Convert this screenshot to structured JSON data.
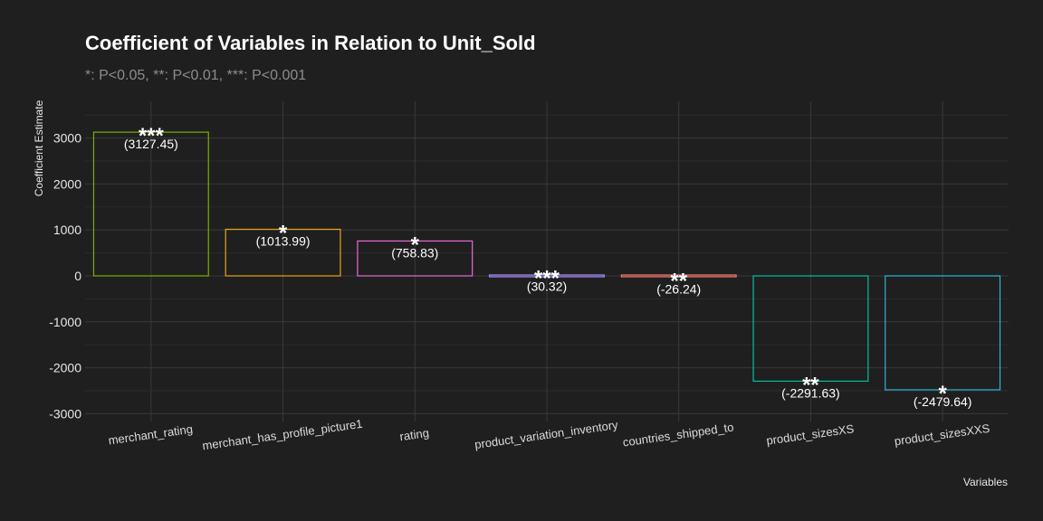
{
  "chart_data": {
    "type": "bar",
    "title": "Coefficient of Variables in Relation to Unit_Sold",
    "subtitle": "*: P<0.05, **: P<0.01, ***: P<0.001",
    "xlabel": "Variables",
    "ylabel": "Coefficient Estimate",
    "categories": [
      "merchant_rating",
      "merchant_has_profile_picture1",
      "rating",
      "product_variation_inventory",
      "countries_shipped_to",
      "product_sizesXS",
      "product_sizesXXS"
    ],
    "values": [
      3127.45,
      1013.99,
      758.83,
      30.32,
      -26.24,
      -2291.63,
      -2479.64
    ],
    "value_labels": [
      "(3127.45)",
      "(1013.99)",
      "(758.83)",
      "(30.32)",
      "(-26.24)",
      "(-2291.63)",
      "(-2479.64)"
    ],
    "significance": [
      "***",
      "*",
      "*",
      "***",
      "**",
      "**",
      "*"
    ],
    "bar_colors": [
      "#7cae00",
      "#e7a31a",
      "#e86bd6",
      "#a58aff",
      "#f8766d",
      "#00bfa0",
      "#27b8d8"
    ],
    "ylim": [
      -3300,
      3800
    ],
    "yticks": [
      3000,
      2000,
      1000,
      0,
      -1000,
      -2000,
      -3000
    ],
    "ytick_labels": [
      "3000",
      "2000",
      "1000",
      "0",
      "-1000",
      "-2000",
      "-3000"
    ],
    "grid": true,
    "legend": "none"
  }
}
